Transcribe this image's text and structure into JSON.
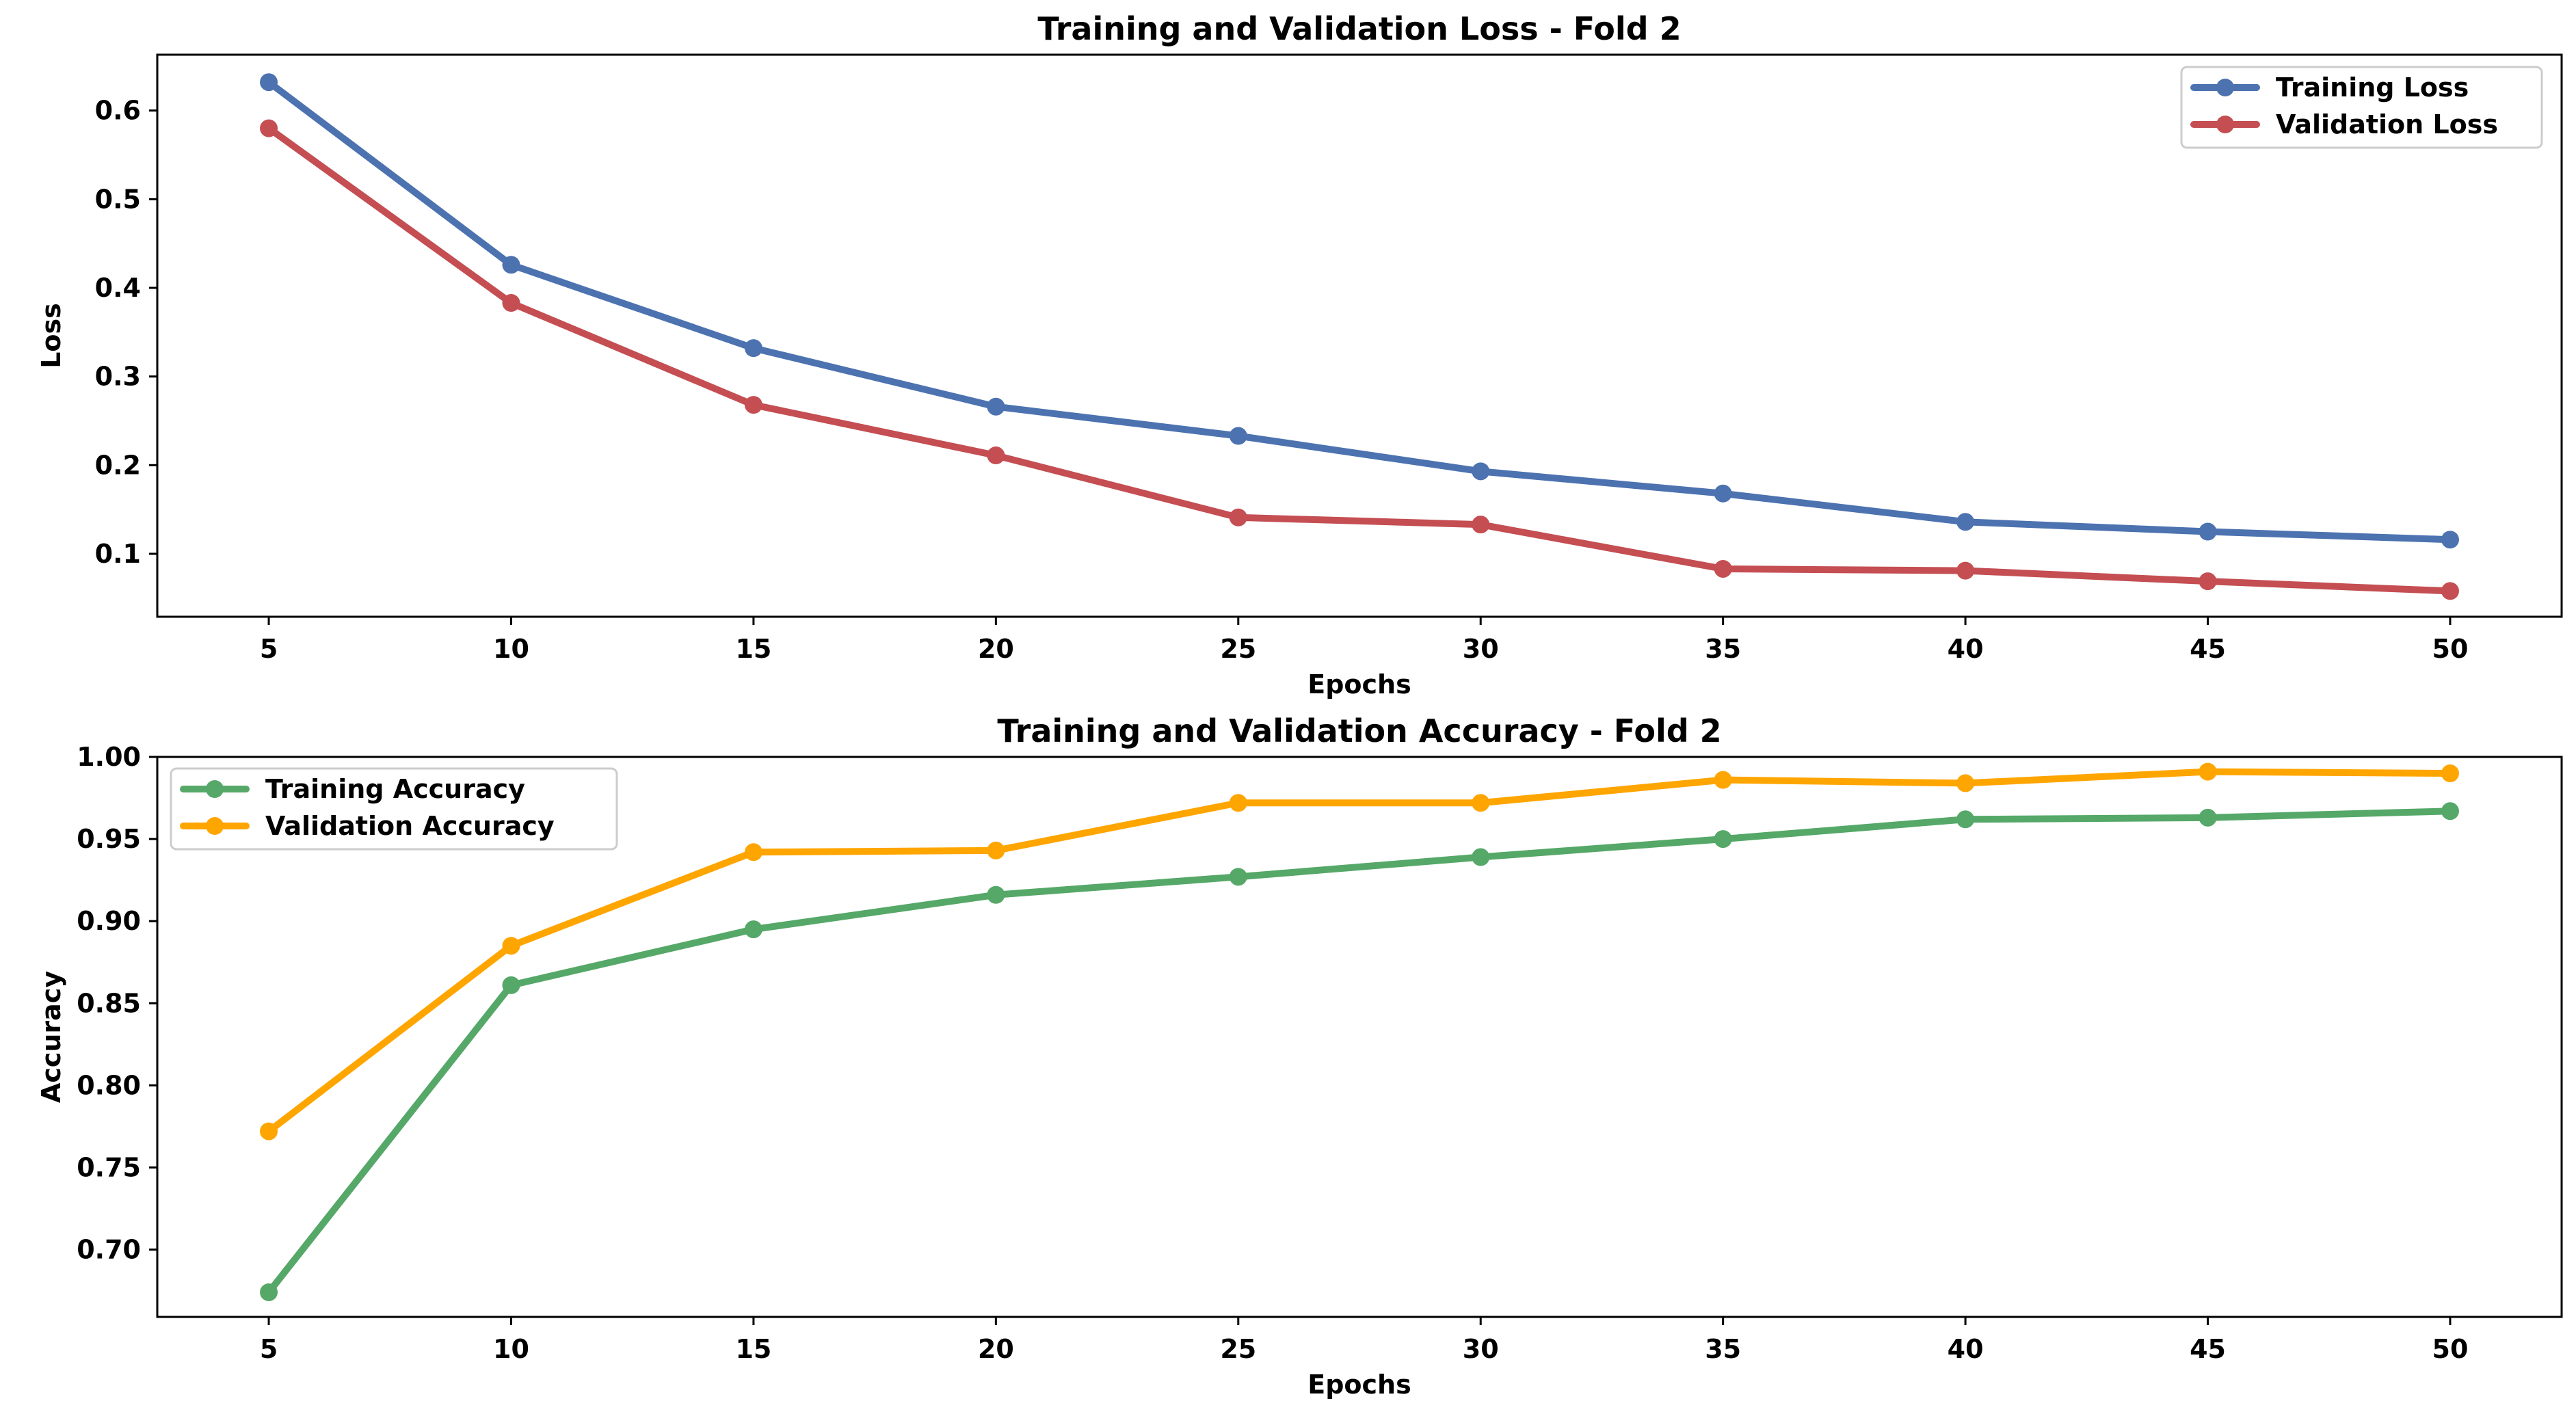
{
  "chart_data": [
    {
      "type": "line",
      "title": "Training and Validation Loss - Fold 2",
      "xlabel": "Epochs",
      "ylabel": "Loss",
      "x": [
        5,
        10,
        15,
        20,
        25,
        30,
        35,
        40,
        45,
        50
      ],
      "xlim": [
        2.7,
        52.3
      ],
      "ylim": [
        0.029,
        0.663
      ],
      "xticks": [
        "5",
        "10",
        "15",
        "20",
        "25",
        "30",
        "35",
        "40",
        "45",
        "50"
      ],
      "yticks": [
        "0.1",
        "0.2",
        "0.3",
        "0.4",
        "0.5",
        "0.6"
      ],
      "grid": false,
      "legend_position": "top-right",
      "series": [
        {
          "name": "Training Loss",
          "color": "#4c72b0",
          "values": [
            0.632,
            0.426,
            0.332,
            0.266,
            0.233,
            0.193,
            0.168,
            0.136,
            0.125,
            0.116
          ]
        },
        {
          "name": "Validation Loss",
          "color": "#c44e52",
          "values": [
            0.58,
            0.383,
            0.268,
            0.211,
            0.141,
            0.133,
            0.083,
            0.081,
            0.069,
            0.058
          ]
        }
      ]
    },
    {
      "type": "line",
      "title": "Training and Validation Accuracy - Fold 2",
      "xlabel": "Epochs",
      "ylabel": "Accuracy",
      "x": [
        5,
        10,
        15,
        20,
        25,
        30,
        35,
        40,
        45,
        50
      ],
      "xlim": [
        2.7,
        52.3
      ],
      "ylim": [
        0.659,
        1.0
      ],
      "xticks": [
        "5",
        "10",
        "15",
        "20",
        "25",
        "30",
        "35",
        "40",
        "45",
        "50"
      ],
      "yticks": [
        "0.70",
        "0.75",
        "0.80",
        "0.85",
        "0.90",
        "0.95",
        "1.00"
      ],
      "grid": false,
      "legend_position": "top-left",
      "series": [
        {
          "name": "Training Accuracy",
          "color": "#55a868",
          "values": [
            0.674,
            0.861,
            0.895,
            0.916,
            0.927,
            0.939,
            0.95,
            0.962,
            0.963,
            0.967
          ]
        },
        {
          "name": "Validation Accuracy",
          "color": "#ffa500",
          "values": [
            0.772,
            0.885,
            0.942,
            0.943,
            0.972,
            0.972,
            0.986,
            0.984,
            0.991,
            0.99
          ]
        }
      ]
    }
  ]
}
